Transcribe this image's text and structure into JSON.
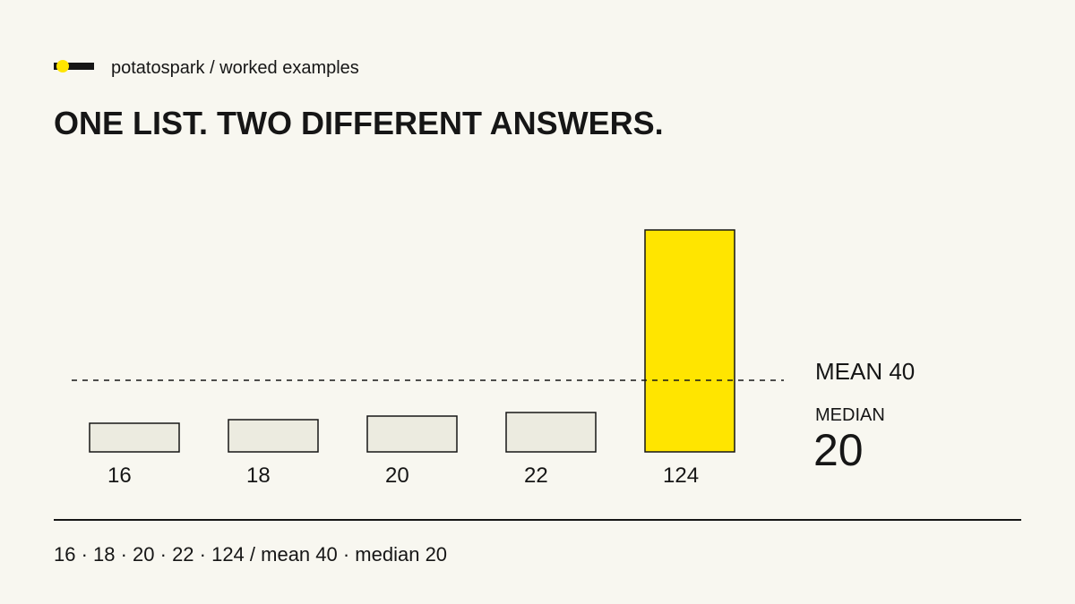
{
  "brand": "potatospark / worked examples",
  "chart_data": {
    "type": "bar",
    "title": "ONE LIST. TWO DIFFERENT ANSWERS.",
    "values": [
      16,
      18,
      20,
      22,
      124
    ],
    "colors": [
      "#ecebe0",
      "#ecebe0",
      "#ecebe0",
      "#ecebe0",
      "#ffe500"
    ],
    "mean": {
      "value": 40,
      "label": "MEAN 40"
    },
    "median_label": "MEDIAN",
    "median": 20,
    "footer": "16 · 18 · 20 · 22 · 124 / mean 40 · median 20"
  }
}
